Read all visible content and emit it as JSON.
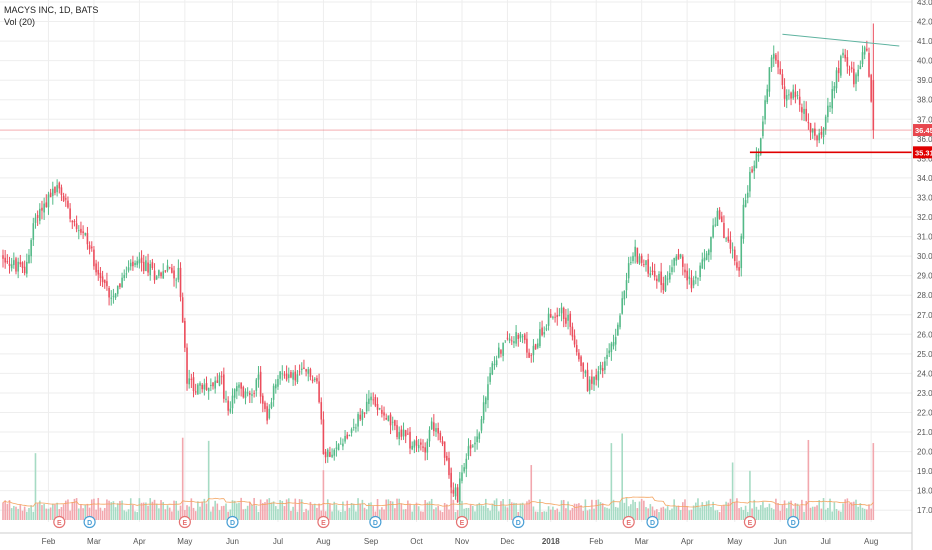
{
  "header": {
    "title": "MACYS INC, 1D, BATS",
    "volume_label": "Vol (20)"
  },
  "price_labels": {
    "current": "36.45",
    "support": "35.31"
  },
  "colors": {
    "up": "#53b987",
    "down": "#eb4d5c",
    "up_vol": "#a6dbc4",
    "down_vol": "#f2a7ae",
    "ma": "#f4a460",
    "trendline": "#5fb3a0",
    "support": "#e00000",
    "current": "#e8474e",
    "grid": "#eeeeee",
    "axis_text": "#555555"
  },
  "chart_data": {
    "type": "candlestick",
    "title": "MACYS INC, 1D, BATS",
    "y_axis": {
      "min": 16.5,
      "max": 43.0,
      "ticks": [
        "17.00",
        "18.00",
        "19.00",
        "20.00",
        "21.00",
        "22.00",
        "23.00",
        "24.00",
        "25.00",
        "26.00",
        "27.00",
        "28.00",
        "29.00",
        "30.00",
        "31.00",
        "32.00",
        "33.00",
        "34.00",
        "35.00",
        "36.00",
        "37.00",
        "38.00",
        "39.00",
        "40.00",
        "41.00",
        "42.00",
        "43.00"
      ]
    },
    "x_axis": {
      "labels": [
        "Feb",
        "Mar",
        "Apr",
        "May",
        "Jun",
        "Jul",
        "Aug",
        "Sep",
        "Oct",
        "Nov",
        "Dec",
        "2018",
        "Feb",
        "Mar",
        "Apr",
        "May",
        "Jun",
        "Jul",
        "Aug"
      ],
      "label_days": [
        21,
        42,
        63,
        84,
        106,
        127,
        148,
        170,
        191,
        212,
        233,
        253,
        274,
        295,
        316,
        338,
        359,
        380,
        401
      ]
    },
    "price_path": [
      [
        0,
        30.0
      ],
      [
        5,
        29.5
      ],
      [
        10,
        29.2
      ],
      [
        15,
        32.0
      ],
      [
        20,
        32.8
      ],
      [
        25,
        33.5
      ],
      [
        28,
        33.0
      ],
      [
        32,
        32.0
      ],
      [
        38,
        31.0
      ],
      [
        42,
        29.8
      ],
      [
        46,
        28.6
      ],
      [
        50,
        28.0
      ],
      [
        55,
        28.8
      ],
      [
        60,
        29.5
      ],
      [
        66,
        29.5
      ],
      [
        70,
        29.1
      ],
      [
        76,
        29.3
      ],
      [
        80,
        29.1
      ],
      [
        81,
        29.5
      ],
      [
        83,
        26.5
      ],
      [
        85,
        23.6
      ],
      [
        90,
        23.2
      ],
      [
        95,
        23.3
      ],
      [
        100,
        24.0
      ],
      [
        104,
        22.0
      ],
      [
        108,
        23.3
      ],
      [
        112,
        22.8
      ],
      [
        118,
        23.6
      ],
      [
        122,
        21.5
      ],
      [
        126,
        23.6
      ],
      [
        130,
        24.0
      ],
      [
        135,
        23.8
      ],
      [
        140,
        24.1
      ],
      [
        145,
        23.6
      ],
      [
        148,
        20.2
      ],
      [
        152,
        19.6
      ],
      [
        156,
        20.6
      ],
      [
        160,
        21.0
      ],
      [
        165,
        21.8
      ],
      [
        170,
        22.7
      ],
      [
        175,
        22.2
      ],
      [
        180,
        21.2
      ],
      [
        185,
        20.8
      ],
      [
        190,
        20.2
      ],
      [
        195,
        20.3
      ],
      [
        198,
        21.5
      ],
      [
        200,
        21.0
      ],
      [
        204,
        19.8
      ],
      [
        207,
        18.2
      ],
      [
        210,
        17.7
      ],
      [
        213,
        19.5
      ],
      [
        216,
        20.2
      ],
      [
        220,
        21.0
      ],
      [
        224,
        23.4
      ],
      [
        228,
        25.0
      ],
      [
        232,
        25.6
      ],
      [
        236,
        25.9
      ],
      [
        240,
        25.6
      ],
      [
        244,
        24.8
      ],
      [
        248,
        26.1
      ],
      [
        252,
        26.8
      ],
      [
        256,
        27.2
      ],
      [
        259,
        27.0
      ],
      [
        262,
        26.5
      ],
      [
        266,
        25.0
      ],
      [
        270,
        23.4
      ],
      [
        274,
        24.0
      ],
      [
        278,
        24.5
      ],
      [
        282,
        25.5
      ],
      [
        285,
        27.0
      ],
      [
        289,
        29.5
      ],
      [
        292,
        30.2
      ],
      [
        296,
        29.5
      ],
      [
        300,
        29.3
      ],
      [
        305,
        28.5
      ],
      [
        310,
        30.0
      ],
      [
        314,
        29.7
      ],
      [
        318,
        28.5
      ],
      [
        322,
        29.2
      ],
      [
        326,
        30.5
      ],
      [
        330,
        32.0
      ],
      [
        334,
        31.0
      ],
      [
        337,
        30.0
      ],
      [
        340,
        29.5
      ],
      [
        342,
        32.5
      ],
      [
        345,
        34.0
      ],
      [
        349,
        35.2
      ],
      [
        352,
        38.0
      ],
      [
        355,
        40.5
      ],
      [
        358,
        39.5
      ],
      [
        361,
        38.0
      ],
      [
        365,
        38.5
      ],
      [
        369,
        37.5
      ],
      [
        372,
        36.8
      ],
      [
        376,
        36.2
      ],
      [
        380,
        36.8
      ],
      [
        384,
        39.0
      ],
      [
        388,
        40.3
      ],
      [
        391,
        39.8
      ],
      [
        393,
        38.8
      ],
      [
        395,
        39.5
      ],
      [
        397,
        40.5
      ],
      [
        399,
        40.8
      ],
      [
        402,
        36.45
      ]
    ],
    "gaps": [
      82,
      147
    ],
    "candle_stats": {
      "count": 403,
      "last_close": 36.45,
      "last_high": 41.9,
      "last_low": 36.0
    },
    "trendline": {
      "from": {
        "day": 360,
        "price": 41.35
      },
      "to": {
        "day": 414,
        "price": 40.75
      }
    },
    "support_line": {
      "from_day": 345,
      "price": 35.31
    },
    "current_price_line": {
      "price": 36.45
    },
    "volume": {
      "baseline_avg": 1.0,
      "spike_days": [
        15,
        83,
        95,
        148,
        207,
        244,
        281,
        286,
        337,
        345,
        372,
        402
      ]
    },
    "earnings_markers": [
      {
        "label": "E",
        "day": 26,
        "kind": "earnings"
      },
      {
        "label": "D",
        "day": 40,
        "kind": "dividend"
      },
      {
        "label": "E",
        "day": 84,
        "kind": "earnings"
      },
      {
        "label": "D",
        "day": 106,
        "kind": "dividend"
      },
      {
        "label": "E",
        "day": 148,
        "kind": "earnings"
      },
      {
        "label": "D",
        "day": 172,
        "kind": "dividend"
      },
      {
        "label": "E",
        "day": 212,
        "kind": "earnings"
      },
      {
        "label": "D",
        "day": 238,
        "kind": "dividend"
      },
      {
        "label": "E",
        "day": 289,
        "kind": "earnings"
      },
      {
        "label": "D",
        "day": 300,
        "kind": "dividend"
      },
      {
        "label": "E",
        "day": 345,
        "kind": "earnings"
      },
      {
        "label": "D",
        "day": 365,
        "kind": "dividend"
      }
    ]
  }
}
